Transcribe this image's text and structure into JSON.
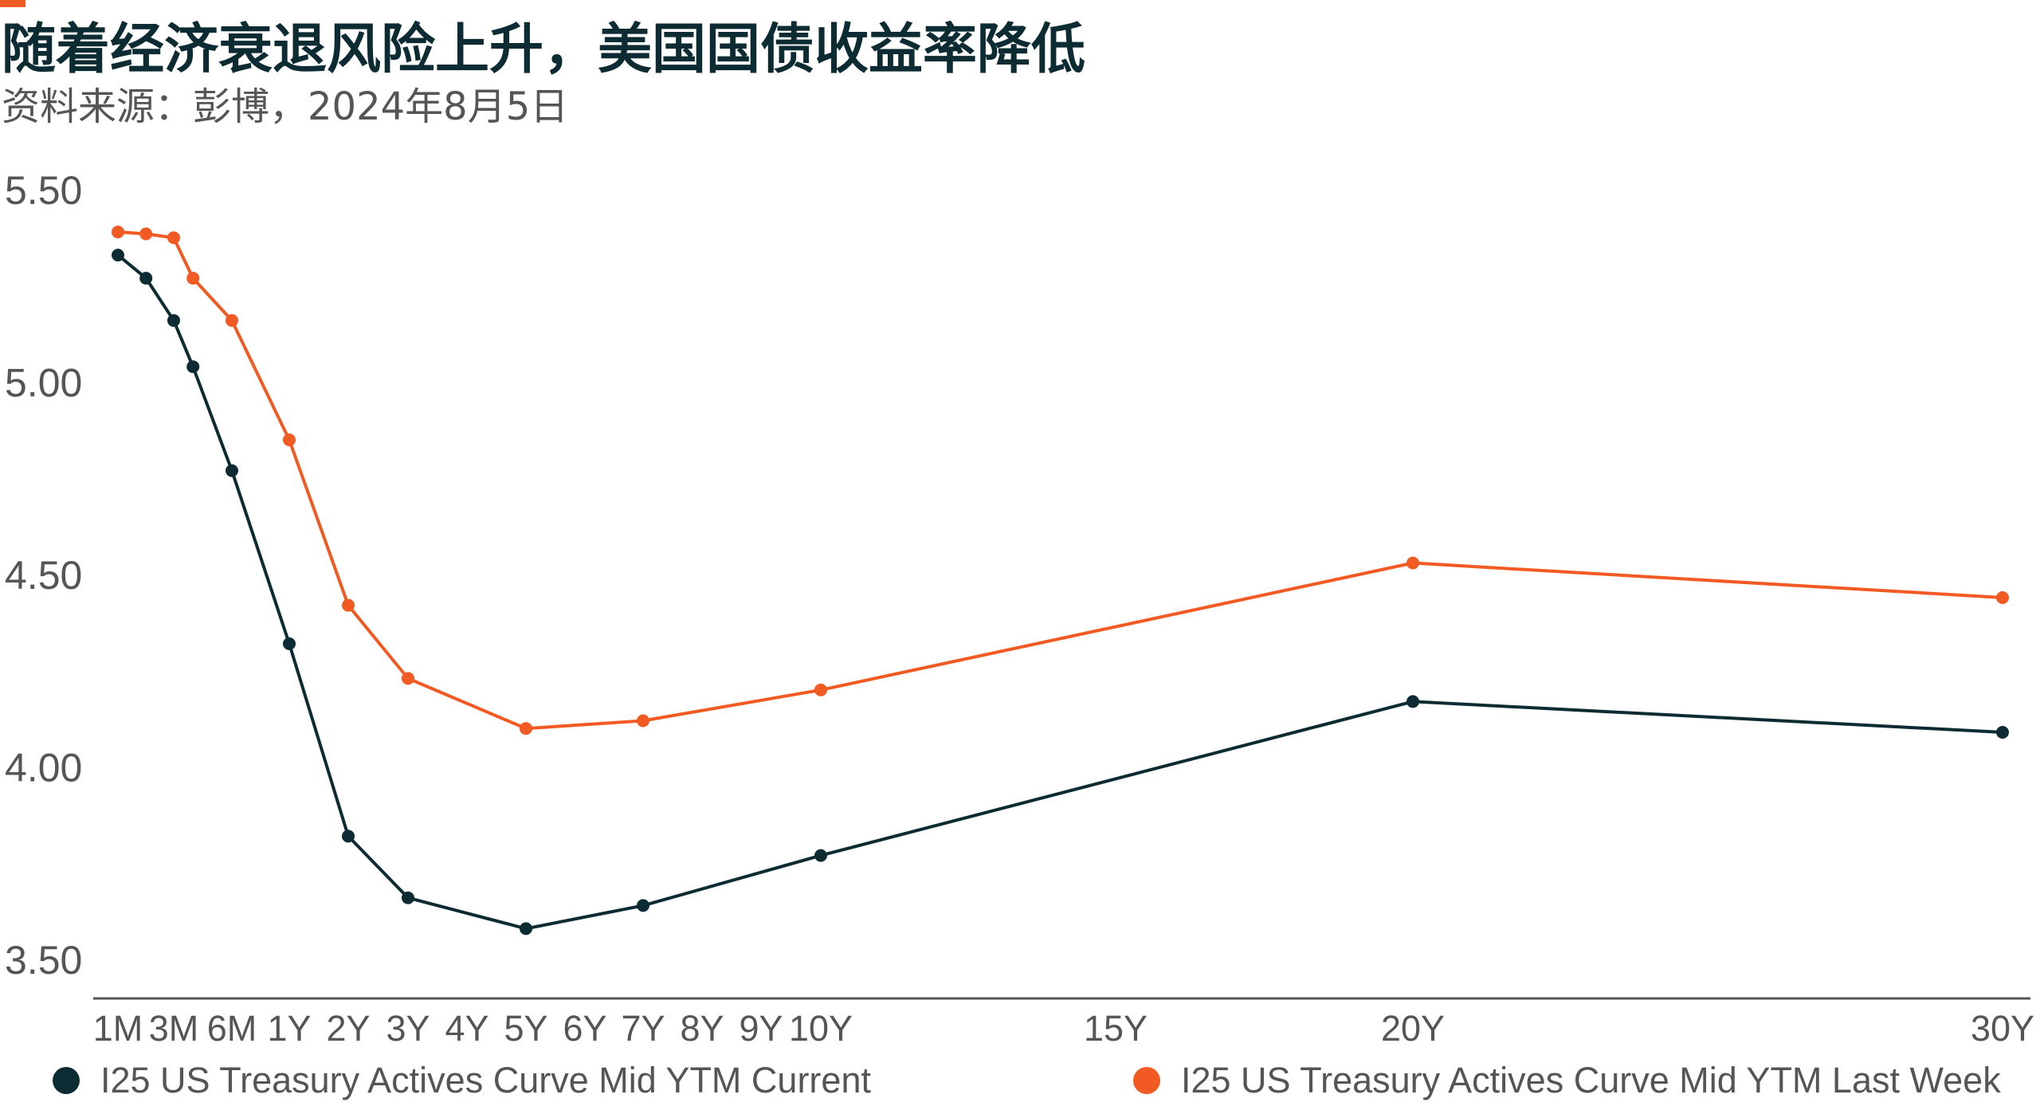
{
  "header": {
    "title": "随着经济衰退风险上升，美国国债收益率降低",
    "subtitle": "资料来源：彭博，2024年8月5日"
  },
  "colors": {
    "accent": "#f15a22",
    "current": "#0d2b33",
    "last_week": "#f15a22",
    "axis": "#555555"
  },
  "chart_data": {
    "type": "line",
    "title": "随着经济衰退风险上升，美国国债收益率降低",
    "xlabel": "",
    "ylabel": "",
    "x_tick_labels": [
      "1M",
      "3M",
      "6M",
      "1Y",
      "2Y",
      "3Y",
      "4Y",
      "5Y",
      "6Y",
      "7Y",
      "8Y",
      "9Y",
      "10Y",
      "15Y",
      "20Y",
      "30Y"
    ],
    "x_tick_years": [
      0.083,
      0.25,
      0.5,
      1,
      2,
      3,
      4,
      5,
      6,
      7,
      8,
      9,
      10,
      15,
      20,
      30
    ],
    "y_ticks": [
      "5.50",
      "5.00",
      "4.50",
      "4.00",
      "3.50"
    ],
    "ylim": [
      3.5,
      5.5
    ],
    "grid": false,
    "legend_position": "bottom",
    "series": [
      {
        "name": "I25 US Treasury Actives Curve Mid YTM Current",
        "color": "#0d2b33",
        "points": [
          {
            "tenor": "1M",
            "years": 0.083,
            "value": 5.33
          },
          {
            "tenor": "2M",
            "years": 0.167,
            "value": 5.27
          },
          {
            "tenor": "3M",
            "years": 0.25,
            "value": 5.16
          },
          {
            "tenor": "4M",
            "years": 0.333,
            "value": 5.04
          },
          {
            "tenor": "6M",
            "years": 0.5,
            "value": 4.77
          },
          {
            "tenor": "1Y",
            "years": 1,
            "value": 4.32
          },
          {
            "tenor": "2Y",
            "years": 2,
            "value": 3.82
          },
          {
            "tenor": "3Y",
            "years": 3,
            "value": 3.66
          },
          {
            "tenor": "5Y",
            "years": 5,
            "value": 3.58
          },
          {
            "tenor": "7Y",
            "years": 7,
            "value": 3.64
          },
          {
            "tenor": "10Y",
            "years": 10,
            "value": 3.77
          },
          {
            "tenor": "20Y",
            "years": 20,
            "value": 4.17
          },
          {
            "tenor": "30Y",
            "years": 30,
            "value": 4.09
          }
        ]
      },
      {
        "name": "I25 US Treasury Actives Curve Mid YTM Last Week",
        "color": "#f15a22",
        "points": [
          {
            "tenor": "1M",
            "years": 0.083,
            "value": 5.39
          },
          {
            "tenor": "2M",
            "years": 0.167,
            "value": 5.385
          },
          {
            "tenor": "3M",
            "years": 0.25,
            "value": 5.375
          },
          {
            "tenor": "4M",
            "years": 0.333,
            "value": 5.27
          },
          {
            "tenor": "6M",
            "years": 0.5,
            "value": 5.16
          },
          {
            "tenor": "1Y",
            "years": 1,
            "value": 4.85
          },
          {
            "tenor": "2Y",
            "years": 2,
            "value": 4.42
          },
          {
            "tenor": "3Y",
            "years": 3,
            "value": 4.23
          },
          {
            "tenor": "5Y",
            "years": 5,
            "value": 4.1
          },
          {
            "tenor": "7Y",
            "years": 7,
            "value": 4.12
          },
          {
            "tenor": "10Y",
            "years": 10,
            "value": 4.2
          },
          {
            "tenor": "20Y",
            "years": 20,
            "value": 4.53
          },
          {
            "tenor": "30Y",
            "years": 30,
            "value": 4.44
          }
        ]
      }
    ]
  },
  "legend": {
    "items": [
      {
        "label": "I25 US Treasury Actives Curve Mid YTM Current",
        "color": "#0d2b33"
      },
      {
        "label": "I25 US Treasury Actives Curve Mid YTM Last Week",
        "color": "#f15a22"
      }
    ]
  }
}
